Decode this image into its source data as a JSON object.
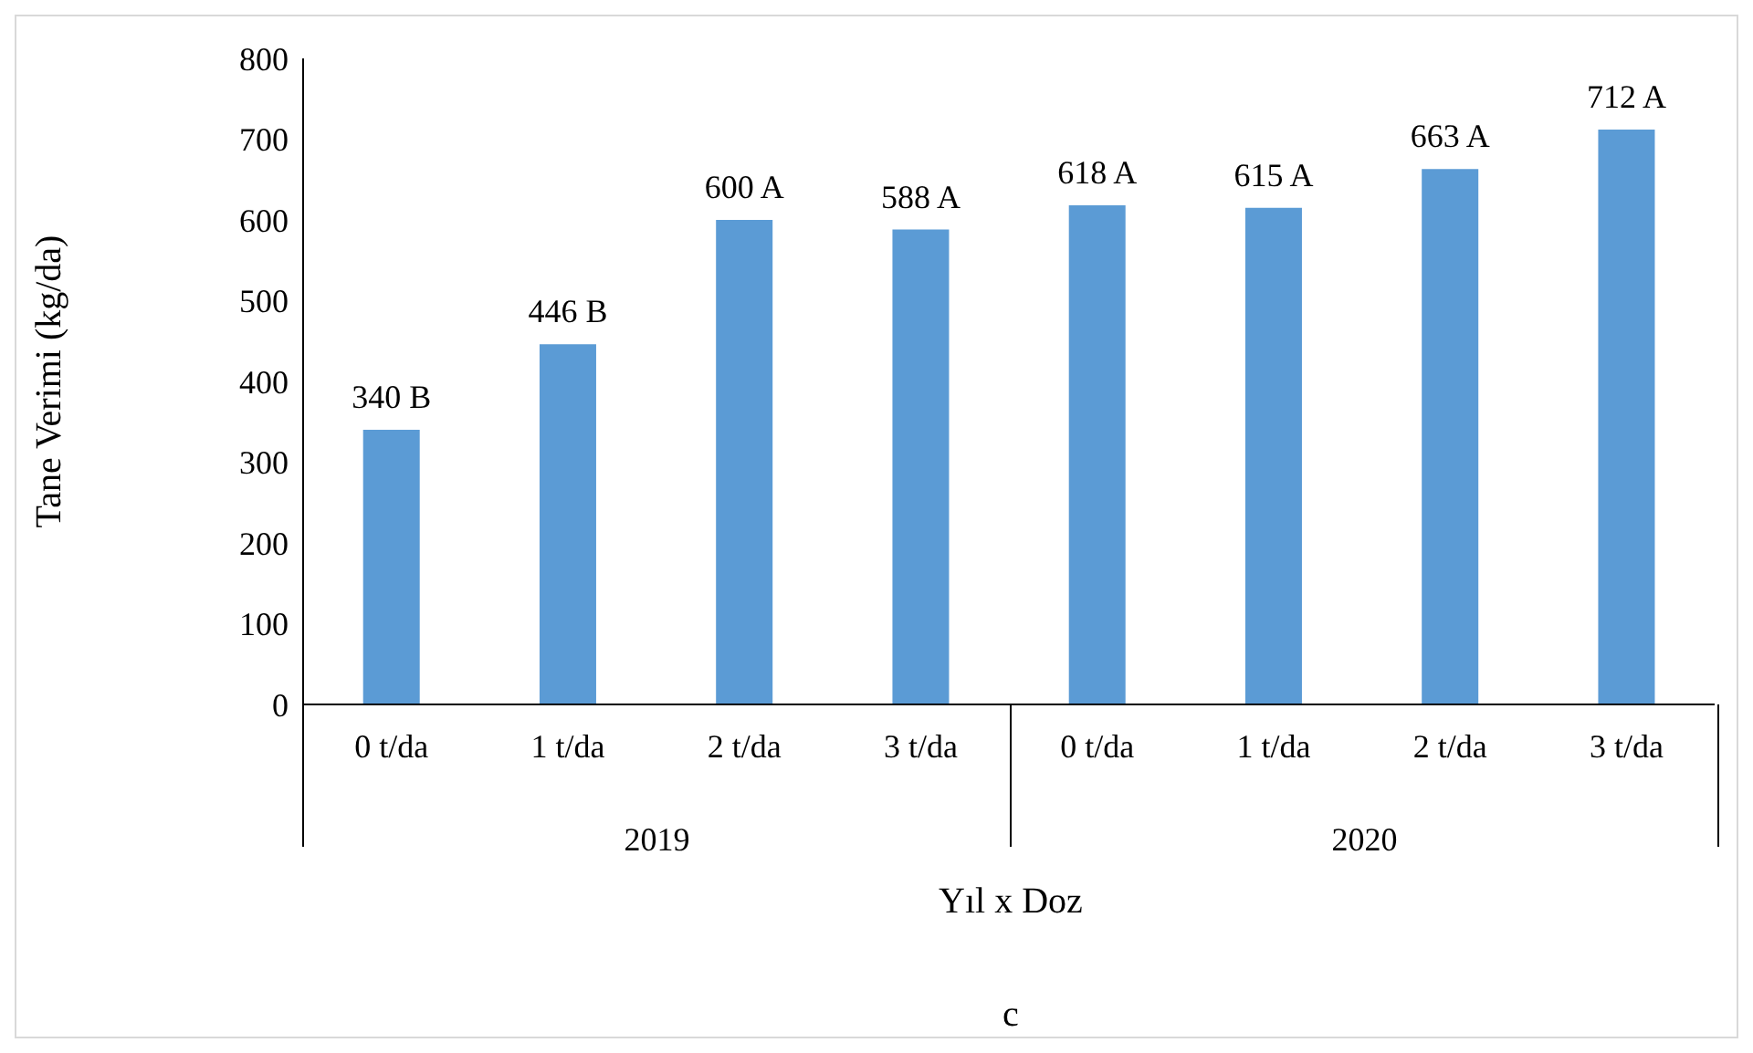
{
  "chart_data": {
    "type": "bar",
    "xlabel": "Yıl x Doz",
    "ylabel": "Tane Verimi  (kg/da)",
    "categories": [
      "0 t/da",
      "1 t/da",
      "2 t/da",
      "3 t/da",
      "0 t/da",
      "1 t/da",
      "2 t/da",
      "3 t/da"
    ],
    "values": [
      340,
      446,
      600,
      588,
      618,
      615,
      663,
      712
    ],
    "value_labels": [
      "340 B",
      "446 B",
      "600 A",
      "588 A",
      "618 A",
      "615 A",
      "663 A",
      "712 A"
    ],
    "color": "#5b9bd5",
    "ylim": [
      0,
      800
    ],
    "yticks": [
      0,
      100,
      200,
      300,
      400,
      500,
      600,
      700,
      800
    ],
    "grid": false,
    "annotations": [
      "2019",
      "2020",
      "c"
    ]
  }
}
